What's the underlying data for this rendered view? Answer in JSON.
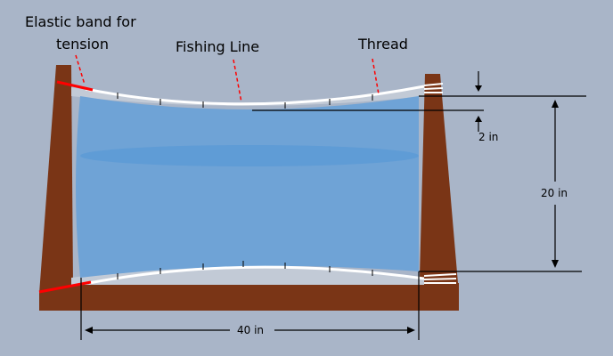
{
  "labels": {
    "elastic_line1": "Elastic band for",
    "elastic_line2": "tension",
    "fishing_line": "Fishing Line",
    "thread": "Thread",
    "dim_sag": "2 in",
    "dim_height": "20 in",
    "dim_width": "40 in"
  },
  "colors": {
    "background": "#a9b5c8",
    "frame": "#7a3516",
    "fabric": "#6fa3d6",
    "fabric_highlight": "#5b9ad6",
    "elastic": "#ff0000",
    "fishing_line": "#ffffff",
    "leader": "#ff0000",
    "dimension": "#000000"
  }
}
